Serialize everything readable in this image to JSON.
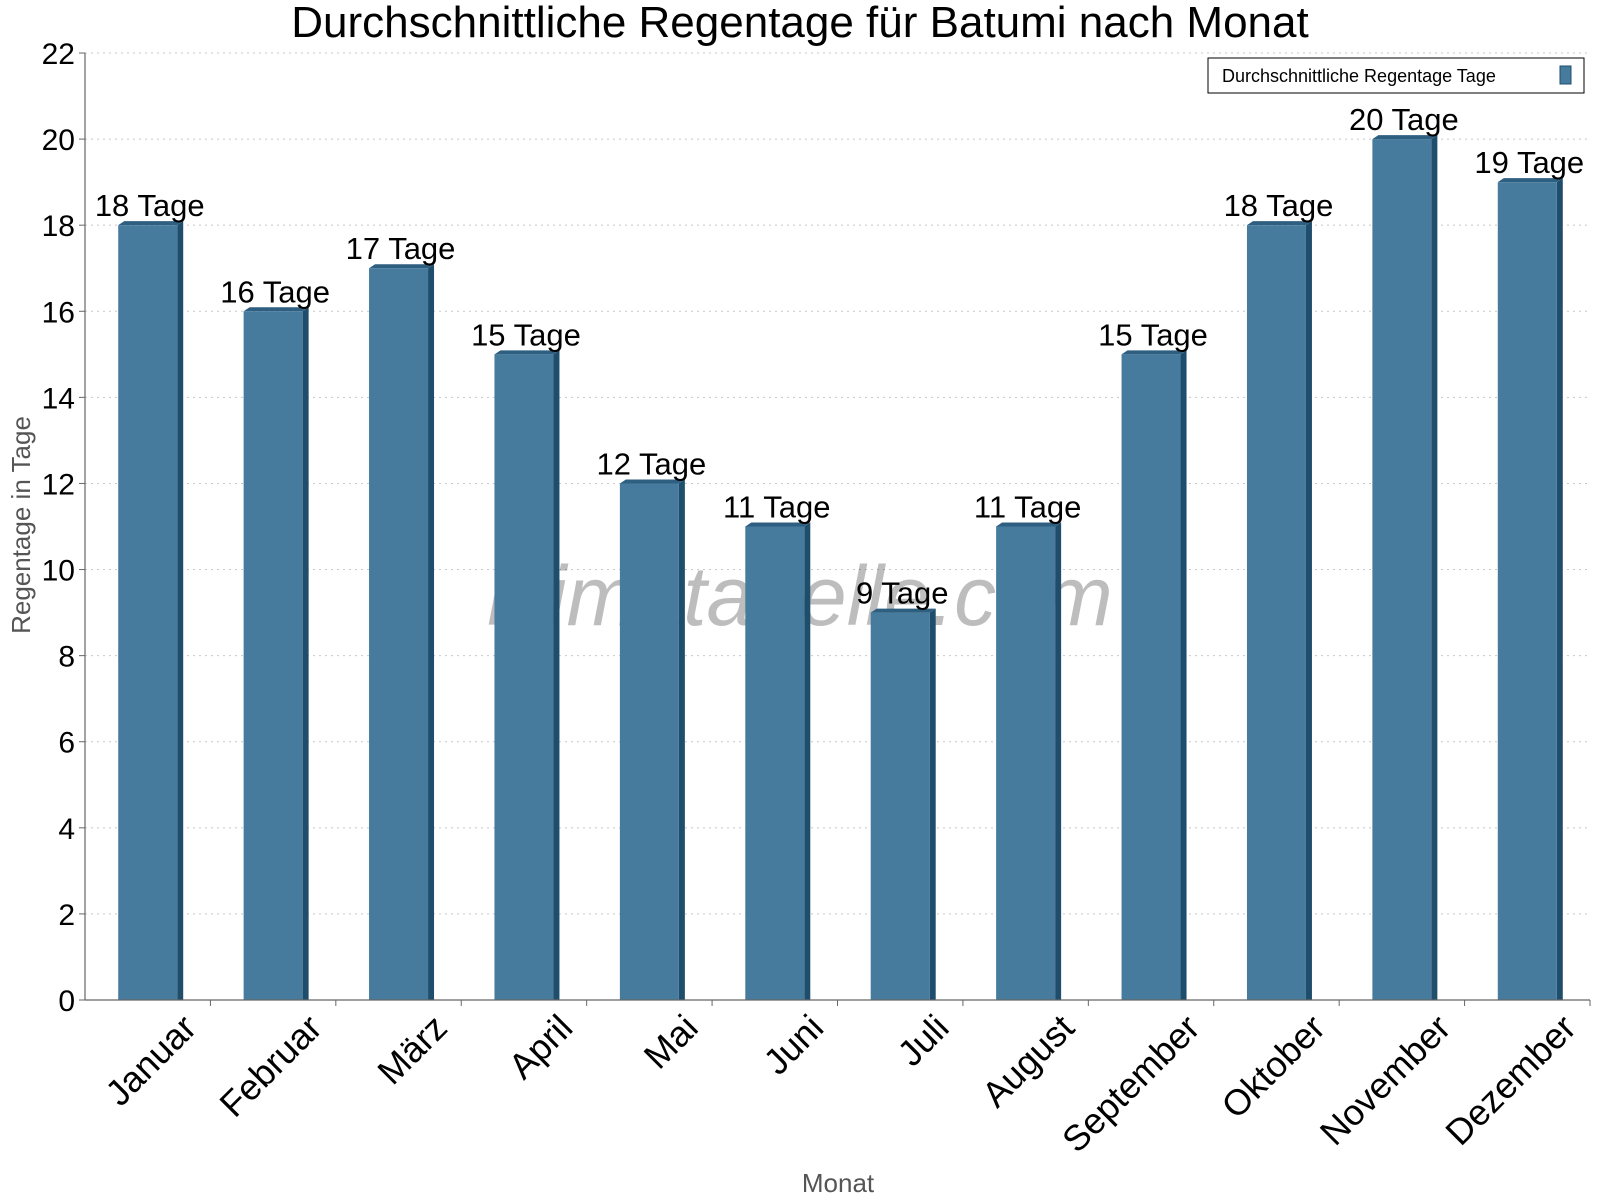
{
  "watermark": "klimatabelle.com",
  "colors": {
    "bar": "#467b9e",
    "bar_side": "#1f4e6d",
    "bar_top": "#2f5f80",
    "grid": "#c8c8c8",
    "axis": "#666666"
  },
  "chart_data": {
    "type": "bar",
    "title": "Durchschnittliche Regentage für Batumi nach Monat",
    "xlabel": "Monat",
    "ylabel": "Regentage in Tage",
    "ylim": [
      0,
      22
    ],
    "yticks": [
      0,
      2,
      4,
      6,
      8,
      10,
      12,
      14,
      16,
      18,
      20,
      22
    ],
    "grid": "horizontal dotted",
    "legend_position": "top-right",
    "categories": [
      "Januar",
      "Februar",
      "März",
      "April",
      "Mai",
      "Juni",
      "Juli",
      "August",
      "September",
      "Oktober",
      "November",
      "Dezember"
    ],
    "series": [
      {
        "name": "Durchschnittliche Regentage Tage",
        "values": [
          18,
          16,
          17,
          15,
          12,
          11,
          9,
          11,
          15,
          18,
          20,
          19
        ],
        "labels": [
          "18 Tage",
          "16 Tage",
          "17 Tage",
          "15 Tage",
          "12 Tage",
          "11 Tage",
          "9 Tage",
          "11 Tage",
          "15 Tage",
          "18 Tage",
          "20 Tage",
          "19 Tage"
        ]
      }
    ]
  }
}
